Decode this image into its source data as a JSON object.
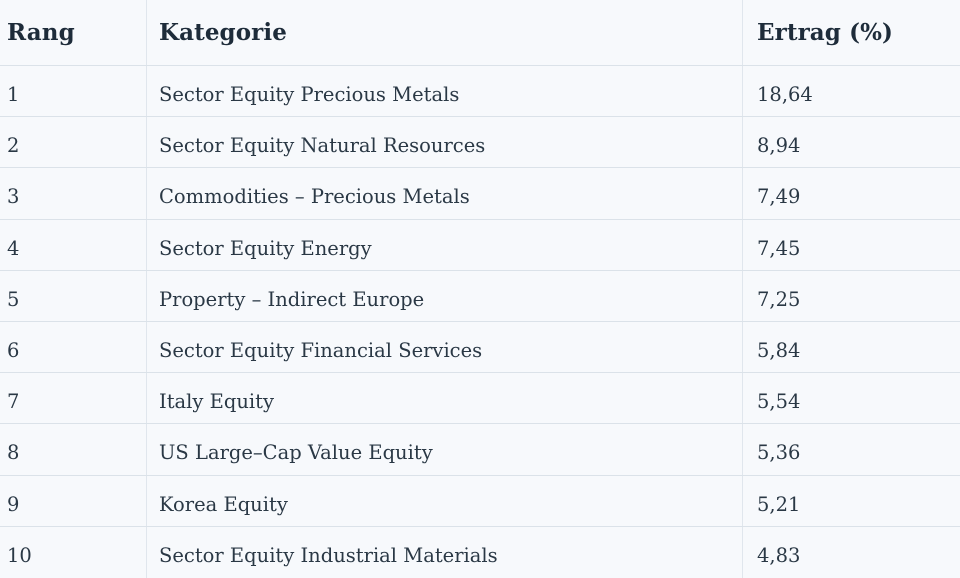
{
  "colors": {
    "background": "#f7f9fc",
    "header_text": "#1e2c3a",
    "body_text": "#2a3845",
    "row_border": "#dbe2e9",
    "column_border": "#e0e6ed"
  },
  "table": {
    "columns": [
      {
        "id": "rang",
        "label": "Rang"
      },
      {
        "id": "kategorie",
        "label": "Kategorie"
      },
      {
        "id": "ertrag",
        "label": "Ertrag (%)"
      }
    ],
    "rows": [
      {
        "rang": "1",
        "kategorie": "Sector Equity Precious Metals",
        "ertrag": "18,64"
      },
      {
        "rang": "2",
        "kategorie": "Sector Equity Natural Resources",
        "ertrag": "8,94"
      },
      {
        "rang": "3",
        "kategorie": "Commodities – Precious Metals",
        "ertrag": "7,49"
      },
      {
        "rang": "4",
        "kategorie": "Sector Equity Energy",
        "ertrag": "7,45"
      },
      {
        "rang": "5",
        "kategorie": "Property – Indirect Europe",
        "ertrag": "7,25"
      },
      {
        "rang": "6",
        "kategorie": "Sector Equity Financial Services",
        "ertrag": "5,84"
      },
      {
        "rang": "7",
        "kategorie": "Italy Equity",
        "ertrag": "5,54"
      },
      {
        "rang": "8",
        "kategorie": "US Large–Cap Value Equity",
        "ertrag": "5,36"
      },
      {
        "rang": "9",
        "kategorie": "Korea Equity",
        "ertrag": "5,21"
      },
      {
        "rang": "10",
        "kategorie": "Sector Equity Industrial Materials",
        "ertrag": "4,83"
      }
    ]
  },
  "chart_data": {
    "type": "table",
    "columns": [
      "Rang",
      "Kategorie",
      "Ertrag (%)"
    ],
    "categories": [
      "Sector Equity Precious Metals",
      "Sector Equity Natural Resources",
      "Commodities – Precious Metals",
      "Sector Equity Energy",
      "Property – Indirect Europe",
      "Sector Equity Financial Services",
      "Italy Equity",
      "US Large–Cap Value Equity",
      "Korea Equity",
      "Sector Equity Industrial Materials"
    ],
    "ranks": [
      1,
      2,
      3,
      4,
      5,
      6,
      7,
      8,
      9,
      10
    ],
    "values": [
      18.64,
      8.94,
      7.49,
      7.45,
      7.25,
      5.84,
      5.54,
      5.36,
      5.21,
      4.83
    ],
    "values_displayed": [
      "18,64",
      "8,94",
      "7,49",
      "7,45",
      "7,25",
      "5,84",
      "5,54",
      "5,36",
      "5,21",
      "4,83"
    ]
  }
}
